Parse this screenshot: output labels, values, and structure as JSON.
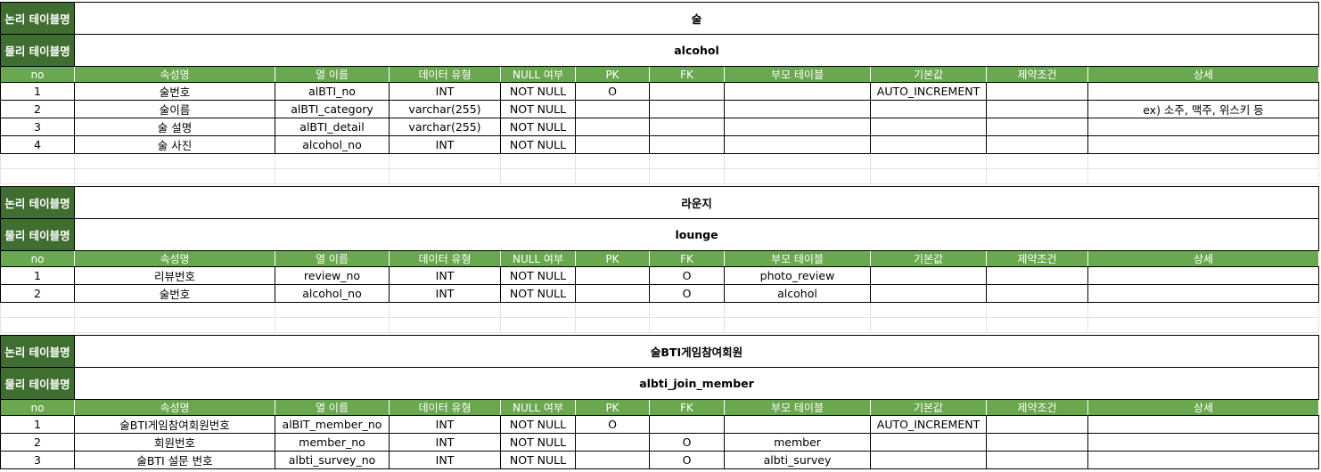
{
  "labels": {
    "logical": "논리 테이블명",
    "physical": "물리 테이블명"
  },
  "columns": [
    "no",
    "속성명",
    "열 이름",
    "데이터 유형",
    "NULL 여부",
    "PK",
    "FK",
    "부모 테이블",
    "기본값",
    "제약조건",
    "상세"
  ],
  "tables": [
    {
      "logical_name": "술",
      "physical_name": "alcohol",
      "rows": [
        {
          "no": "1",
          "attr": "술번호",
          "col": "alBTI_no",
          "type": "INT",
          "null": "NOT NULL",
          "pk": "O",
          "fk": "",
          "parent": "",
          "default": "AUTO_INCREMENT",
          "constraint": "",
          "detail": ""
        },
        {
          "no": "2",
          "attr": "술이름",
          "col": "alBTI_category",
          "type": "varchar(255)",
          "null": "NOT NULL",
          "pk": "",
          "fk": "",
          "parent": "",
          "default": "",
          "constraint": "",
          "detail": "ex) 소주, 맥주, 위스키 등"
        },
        {
          "no": "3",
          "attr": "술 설명",
          "col": "alBTI_detail",
          "type": "varchar(255)",
          "null": "NOT NULL",
          "pk": "",
          "fk": "",
          "parent": "",
          "default": "",
          "constraint": "",
          "detail": ""
        },
        {
          "no": "4",
          "attr": "술 사진",
          "col": "alcohol_no",
          "type": "INT",
          "null": "NOT NULL",
          "pk": "",
          "fk": "",
          "parent": "",
          "default": "",
          "constraint": "",
          "detail": ""
        }
      ]
    },
    {
      "logical_name": "라운지",
      "physical_name": "lounge",
      "rows": [
        {
          "no": "1",
          "attr": "리뷰번호",
          "col": "review_no",
          "type": "INT",
          "null": "NOT NULL",
          "pk": "",
          "fk": "O",
          "parent": "photo_review",
          "default": "",
          "constraint": "",
          "detail": ""
        },
        {
          "no": "2",
          "attr": "술번호",
          "col": "alcohol_no",
          "type": "INT",
          "null": "NOT NULL",
          "pk": "",
          "fk": "O",
          "parent": "alcohol",
          "default": "",
          "constraint": "",
          "detail": ""
        }
      ]
    },
    {
      "logical_name": "술BTI게임참여회원",
      "physical_name": "albti_join_member",
      "rows": [
        {
          "no": "1",
          "attr": "술BTI게임참여회원번호",
          "col": "alBIT_member_no",
          "type": "INT",
          "null": "NOT NULL",
          "pk": "O",
          "fk": "",
          "parent": "",
          "default": "AUTO_INCREMENT",
          "constraint": "",
          "detail": ""
        },
        {
          "no": "2",
          "attr": "회원번호",
          "col": "member_no",
          "type": "INT",
          "null": "NOT NULL",
          "pk": "",
          "fk": "O",
          "parent": "member",
          "default": "",
          "constraint": "",
          "detail": ""
        },
        {
          "no": "3",
          "attr": "술BTI 설문 번호",
          "col": "albti_survey_no",
          "type": "INT",
          "null": "NOT NULL",
          "pk": "",
          "fk": "O",
          "parent": "albti_survey",
          "default": "",
          "constraint": "",
          "detail": ""
        }
      ]
    }
  ]
}
